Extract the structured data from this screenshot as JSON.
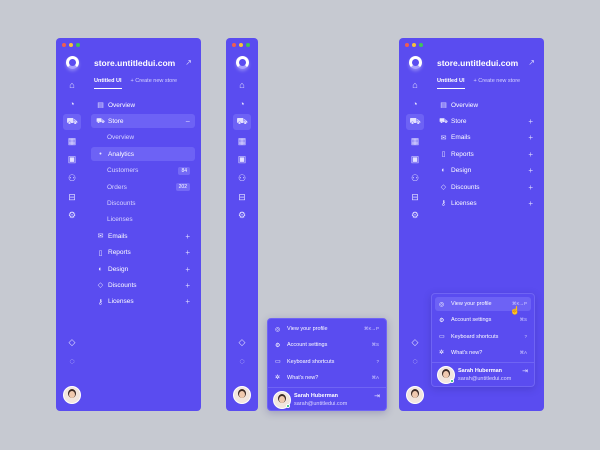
{
  "colors": {
    "background": "#c6c9d1",
    "panel": "#5a4cf0",
    "active": "#6d62f5",
    "dot_red": "#ee5d50",
    "dot_yellow": "#f5c03c",
    "dot_green": "#3fc35a",
    "online": "#17b26a"
  },
  "store_title": "store.untitledui.com",
  "tabs": [
    "Untitled UI",
    "+ Create new store"
  ],
  "rail_icons": [
    "home-icon",
    "chart-icon",
    "cart-icon",
    "grid-icon",
    "calendar-icon",
    "users-icon",
    "inbox-icon",
    "gear-icon"
  ],
  "rail_bottom_icons": [
    "tag-icon",
    "chat-icon"
  ],
  "nav_expanded": [
    {
      "label": "Overview",
      "icon": "overview-icon",
      "trail": ""
    },
    {
      "label": "Store",
      "icon": "cart-icon",
      "trail": "−",
      "selected": true
    },
    {
      "label": "Overview",
      "sub": true,
      "trail": ""
    },
    {
      "label": "Analytics",
      "sub": true,
      "selected": true,
      "trail": ""
    },
    {
      "label": "Customers",
      "sub": true,
      "badge": "84"
    },
    {
      "label": "Orders",
      "sub": true,
      "badge": "202"
    },
    {
      "label": "Discounts",
      "sub": true,
      "trail": ""
    },
    {
      "label": "Licenses",
      "sub": true,
      "trail": ""
    },
    {
      "label": "Emails",
      "icon": "mail-icon",
      "trail": "+"
    },
    {
      "label": "Reports",
      "icon": "report-icon",
      "trail": "+"
    },
    {
      "label": "Design",
      "icon": "design-icon",
      "trail": "+"
    },
    {
      "label": "Discounts",
      "icon": "tag-icon",
      "trail": "+"
    },
    {
      "label": "Licenses",
      "icon": "key-icon",
      "trail": "+"
    }
  ],
  "nav_collapsed": [
    {
      "label": "Overview",
      "icon": "overview-icon",
      "trail": ""
    },
    {
      "label": "Store",
      "icon": "cart-icon",
      "trail": "+"
    },
    {
      "label": "Emails",
      "icon": "mail-icon",
      "trail": "+"
    },
    {
      "label": "Reports",
      "icon": "report-icon",
      "trail": "+"
    },
    {
      "label": "Design",
      "icon": "design-icon",
      "trail": "+"
    },
    {
      "label": "Discounts",
      "icon": "tag-icon",
      "trail": "+"
    },
    {
      "label": "Licenses",
      "icon": "key-icon",
      "trail": "+"
    }
  ],
  "menu": [
    {
      "label": "View your profile",
      "icon": "user-circle-icon",
      "shortcut": "⌘K→P"
    },
    {
      "label": "Account settings",
      "icon": "gear-icon",
      "shortcut": "⌘S"
    },
    {
      "label": "Keyboard shortcuts",
      "icon": "keyboard-icon",
      "shortcut": "?"
    },
    {
      "label": "What's new?",
      "icon": "sparkle-icon",
      "shortcut": "⌘A"
    }
  ],
  "user": {
    "name": "Sarah Huberman",
    "email": "sarah@untitledui.com"
  }
}
